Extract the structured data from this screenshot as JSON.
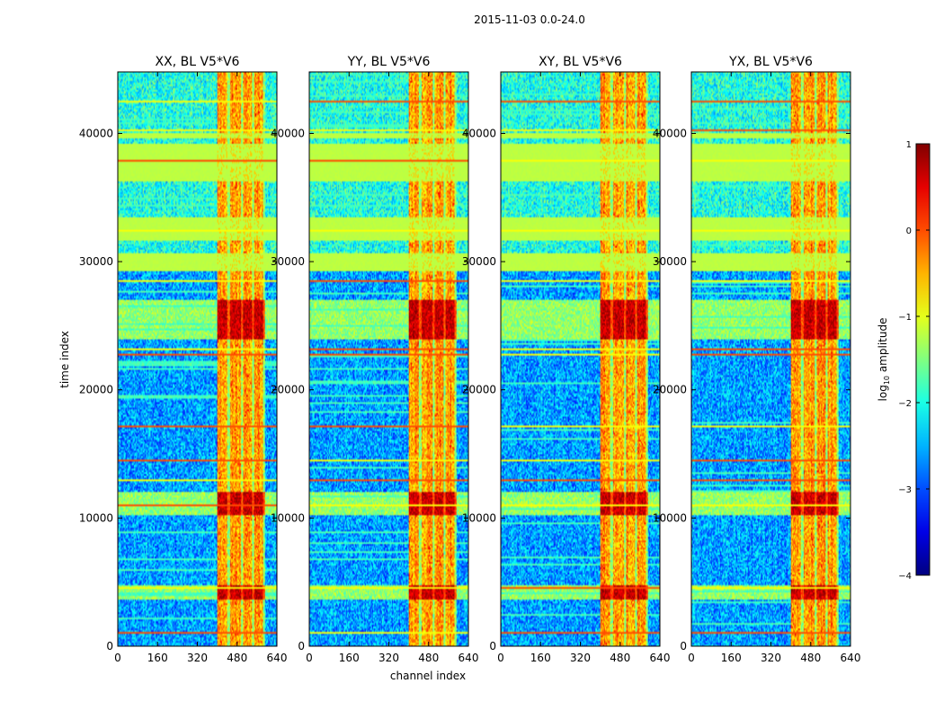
{
  "chart_data": {
    "type": "heatmap",
    "title": "2015-11-03 0.0-24.0",
    "xlabel": "channel index",
    "ylabel": "time index",
    "xlim": [
      0,
      640
    ],
    "ylim": [
      0,
      44800
    ],
    "xticks": [
      0,
      160,
      320,
      480,
      640
    ],
    "yticks": [
      0,
      10000,
      20000,
      30000,
      40000
    ],
    "colorbar": {
      "label_prefix": "log",
      "label_sub": "10",
      "label_suffix": " amplitude",
      "range": [
        -4,
        1
      ],
      "ticks": [
        1,
        0,
        -1,
        -2,
        -3,
        -4
      ],
      "tick_labels": [
        "1",
        "0",
        "−1",
        "−2",
        "−3",
        "−4"
      ],
      "colormap": "jet"
    },
    "panels": [
      {
        "title": "XX, BL V5*V6",
        "seed": 11
      },
      {
        "title": "YY, BL V5*V6",
        "seed": 23
      },
      {
        "title": "XY, BL V5*V6",
        "seed": 37
      },
      {
        "title": "YX, BL V5*V6",
        "seed": 53
      }
    ],
    "features": {
      "rfi_channel_band": [
        400,
        590
      ],
      "rfi_channel_gaps": [
        [
          440,
          452
        ],
        [
          495,
          505
        ],
        [
          540,
          548
        ],
        [
          585,
          600
        ]
      ],
      "flagged_time_ranges": [
        [
          29200,
          30600
        ],
        [
          31600,
          33400
        ],
        [
          36300,
          39200
        ],
        [
          39600,
          40000
        ]
      ],
      "flagged_value": -1.2,
      "strong_rfi_time_ranges": [
        [
          3700,
          4800
        ],
        [
          10200,
          12000
        ],
        [
          24000,
          27000
        ]
      ],
      "horizontal_lines": [
        1000,
        4600,
        11000,
        13000,
        14500,
        17200,
        22800,
        23200,
        28500,
        32400,
        37900,
        40200,
        42500
      ]
    }
  }
}
